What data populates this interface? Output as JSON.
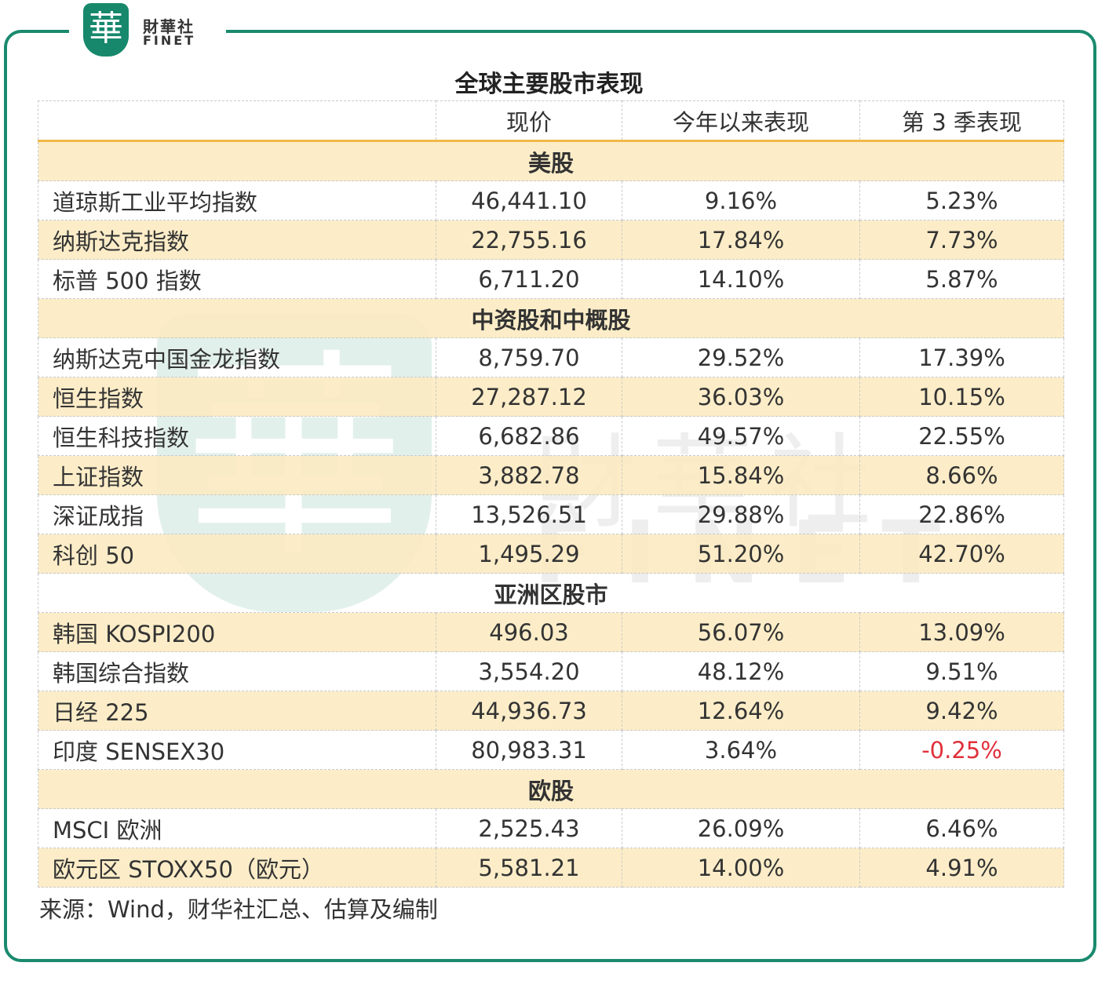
{
  "logo": {
    "mark": "華",
    "name": "財華社",
    "latin": "FINET"
  },
  "title": "全球主要股市表现",
  "table": {
    "header": [
      "现价",
      "今年以来表现",
      "第 3 季表现"
    ],
    "sections": [
      {
        "title": "美股",
        "rows": [
          [
            "道琼斯工业平均指数",
            "46,441.10",
            "9.16%",
            "5.23%"
          ],
          [
            "纳斯达克指数",
            "22,755.16",
            "17.84%",
            "7.73%"
          ],
          [
            "标普 500 指数",
            "6,711.20",
            "14.10%",
            "5.87%"
          ]
        ]
      },
      {
        "title": "中资股和中概股",
        "rows": [
          [
            "纳斯达克中国金龙指数",
            "8,759.70",
            "29.52%",
            "17.39%"
          ],
          [
            "恒生指数",
            "27,287.12",
            "36.03%",
            "10.15%"
          ],
          [
            "恒生科技指数",
            "6,682.86",
            "49.57%",
            "22.55%"
          ],
          [
            "上证指数",
            "3,882.78",
            "15.84%",
            "8.66%"
          ],
          [
            "深证成指",
            "13,526.51",
            "29.88%",
            "22.86%"
          ],
          [
            "科创 50",
            "1,495.29",
            "51.20%",
            "42.70%"
          ]
        ]
      },
      {
        "title": "亚洲区股市",
        "rows": [
          [
            "韩国 KOSPI200",
            "496.03",
            "56.07%",
            "13.09%"
          ],
          [
            "韩国综合指数",
            "3,554.20",
            "48.12%",
            "9.51%"
          ],
          [
            "日经 225",
            "44,936.73",
            "12.64%",
            "9.42%"
          ],
          [
            "印度 SENSEX30",
            "80,983.31",
            "3.64%",
            "-0.25%"
          ]
        ]
      },
      {
        "title": "欧股",
        "rows": [
          [
            "MSCI 欧洲",
            "2,525.43",
            "26.09%",
            "6.46%"
          ],
          [
            "欧元区 STOXX50（欧元）",
            "5,581.21",
            "14.00%",
            "4.91%"
          ]
        ]
      }
    ]
  },
  "source": "来源：Wind，财华社汇总、估算及编制"
}
